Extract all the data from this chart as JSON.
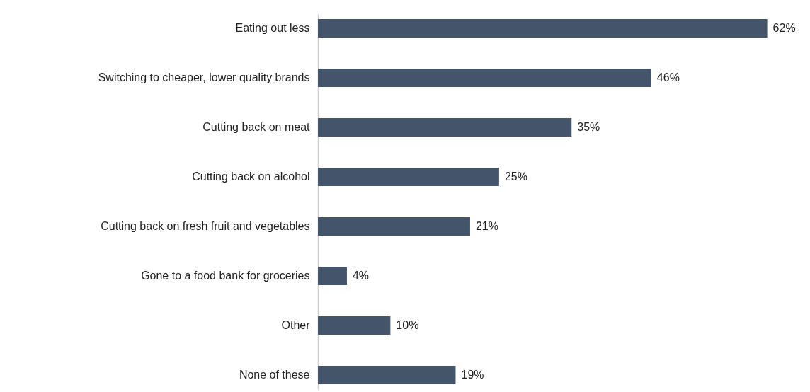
{
  "chart_data": {
    "type": "bar",
    "orientation": "horizontal",
    "categories": [
      "Eating out less",
      "Switching to cheaper, lower quality brands",
      "Cutting back on meat",
      "Cutting back on alcohol",
      "Cutting back on fresh fruit and vegetables",
      "Gone to a food bank for groceries",
      "Other",
      "None of these"
    ],
    "values": [
      62,
      46,
      35,
      25,
      21,
      4,
      10,
      19
    ],
    "value_labels": [
      "62%",
      "46%",
      "35%",
      "25%",
      "21%",
      "4%",
      "10%",
      "19%"
    ],
    "color": "#44546a",
    "grid": false
  }
}
